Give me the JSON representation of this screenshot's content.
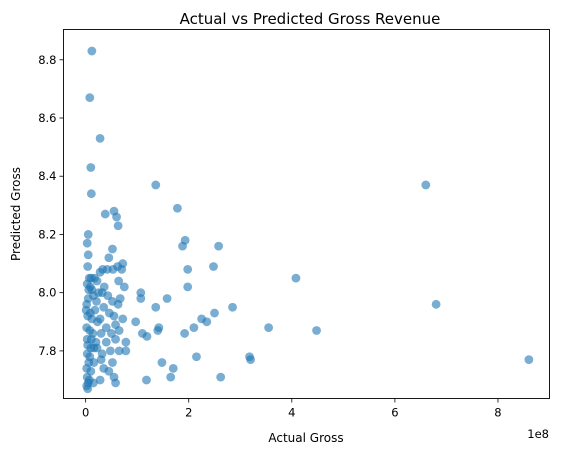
{
  "chart_data": {
    "type": "scatter",
    "title": "Actual vs Predicted Gross Revenue",
    "xlabel": "Actual Gross",
    "ylabel": "Predicted Gross",
    "x_offset_label": "1e8",
    "x_ticks": [
      0,
      2,
      4,
      6,
      8
    ],
    "y_ticks": [
      7.8,
      8.0,
      8.2,
      8.4,
      8.6,
      8.8
    ],
    "y_tick_labels": [
      "7.8",
      "8.0",
      "8.2",
      "8.4",
      "8.6",
      "8.8"
    ],
    "xlim": [
      -0.43,
      9.0
    ],
    "ylim": [
      7.6365,
      8.904
    ],
    "grid": false,
    "marker_color": "#1f77b4",
    "marker_alpha": 0.6,
    "points": [
      [
        0.08,
        8.67
      ],
      [
        0.12,
        8.83
      ],
      [
        0.28,
        8.53
      ],
      [
        0.1,
        8.43
      ],
      [
        0.11,
        8.34
      ],
      [
        1.36,
        8.37
      ],
      [
        6.6,
        8.37
      ],
      [
        1.78,
        8.29
      ],
      [
        0.55,
        8.28
      ],
      [
        0.6,
        8.26
      ],
      [
        0.38,
        8.27
      ],
      [
        0.63,
        8.23
      ],
      [
        0.05,
        8.2
      ],
      [
        0.03,
        8.17
      ],
      [
        0.05,
        8.13
      ],
      [
        2.58,
        8.16
      ],
      [
        1.88,
        8.16
      ],
      [
        1.93,
        8.18
      ],
      [
        0.52,
        8.15
      ],
      [
        0.45,
        8.12
      ],
      [
        0.72,
        8.1
      ],
      [
        0.62,
        8.09
      ],
      [
        0.53,
        8.08
      ],
      [
        0.42,
        8.08
      ],
      [
        0.33,
        8.08
      ],
      [
        0.28,
        8.07
      ],
      [
        0.7,
        8.08
      ],
      [
        1.98,
        8.08
      ],
      [
        2.48,
        8.09
      ],
      [
        0.04,
        8.09
      ],
      [
        0.07,
        8.05
      ],
      [
        0.11,
        8.05
      ],
      [
        0.03,
        8.03
      ],
      [
        0.09,
        8.02
      ],
      [
        4.08,
        8.05
      ],
      [
        0.22,
        8.04
      ],
      [
        0.17,
        8.05
      ],
      [
        0.64,
        8.04
      ],
      [
        0.75,
        8.02
      ],
      [
        0.36,
        8.02
      ],
      [
        0.32,
        8.0
      ],
      [
        0.25,
        8.0
      ],
      [
        1.98,
        8.02
      ],
      [
        0.06,
        8.01
      ],
      [
        0.12,
        8.01
      ],
      [
        0.15,
        7.99
      ],
      [
        0.43,
        7.99
      ],
      [
        0.67,
        7.98
      ],
      [
        0.52,
        7.97
      ],
      [
        1.58,
        7.98
      ],
      [
        0.05,
        7.98
      ],
      [
        0.21,
        7.97
      ],
      [
        0.02,
        7.96
      ],
      [
        1.07,
        8.0
      ],
      [
        1.07,
        7.98
      ],
      [
        6.8,
        7.96
      ],
      [
        0.35,
        7.95
      ],
      [
        0.63,
        7.96
      ],
      [
        0.01,
        7.94
      ],
      [
        0.09,
        7.93
      ],
      [
        0.18,
        7.94
      ],
      [
        2.85,
        7.95
      ],
      [
        0.55,
        7.92
      ],
      [
        0.46,
        7.93
      ],
      [
        0.72,
        7.91
      ],
      [
        0.28,
        7.91
      ],
      [
        1.36,
        7.95
      ],
      [
        2.5,
        7.93
      ],
      [
        0.04,
        7.92
      ],
      [
        0.12,
        7.91
      ],
      [
        0.23,
        7.9
      ],
      [
        0.4,
        7.88
      ],
      [
        0.58,
        7.89
      ],
      [
        2.25,
        7.91
      ],
      [
        2.35,
        7.9
      ],
      [
        0.97,
        7.9
      ],
      [
        1.42,
        7.88
      ],
      [
        1.4,
        7.87
      ],
      [
        2.1,
        7.88
      ],
      [
        0.02,
        7.88
      ],
      [
        0.08,
        7.87
      ],
      [
        0.14,
        7.86
      ],
      [
        0.3,
        7.86
      ],
      [
        0.5,
        7.86
      ],
      [
        0.65,
        7.87
      ],
      [
        1.1,
        7.86
      ],
      [
        1.19,
        7.85
      ],
      [
        3.55,
        7.88
      ],
      [
        4.48,
        7.87
      ],
      [
        1.92,
        7.86
      ],
      [
        0.03,
        7.84
      ],
      [
        0.11,
        7.84
      ],
      [
        0.2,
        7.83
      ],
      [
        0.4,
        7.83
      ],
      [
        0.58,
        7.84
      ],
      [
        0.78,
        7.83
      ],
      [
        0.04,
        7.82
      ],
      [
        0.1,
        7.81
      ],
      [
        0.16,
        7.81
      ],
      [
        0.22,
        7.81
      ],
      [
        0.32,
        7.79
      ],
      [
        0.48,
        7.8
      ],
      [
        0.65,
        7.8
      ],
      [
        0.78,
        7.8
      ],
      [
        0.03,
        7.79
      ],
      [
        0.08,
        7.78
      ],
      [
        3.18,
        7.78
      ],
      [
        3.2,
        7.77
      ],
      [
        2.15,
        7.78
      ],
      [
        0.3,
        7.77
      ],
      [
        0.52,
        7.76
      ],
      [
        0.16,
        7.76
      ],
      [
        0.06,
        7.76
      ],
      [
        1.48,
        7.76
      ],
      [
        1.7,
        7.74
      ],
      [
        8.6,
        7.77
      ],
      [
        0.35,
        7.74
      ],
      [
        0.02,
        7.74
      ],
      [
        0.1,
        7.73
      ],
      [
        0.45,
        7.73
      ],
      [
        1.65,
        7.71
      ],
      [
        2.62,
        7.71
      ],
      [
        0.55,
        7.71
      ],
      [
        0.03,
        7.71
      ],
      [
        0.07,
        7.7
      ],
      [
        1.18,
        7.7
      ],
      [
        0.28,
        7.7
      ],
      [
        0.58,
        7.69
      ],
      [
        0.15,
        7.69
      ],
      [
        0.05,
        7.69
      ],
      [
        0.02,
        7.68
      ],
      [
        0.04,
        7.67
      ]
    ]
  }
}
